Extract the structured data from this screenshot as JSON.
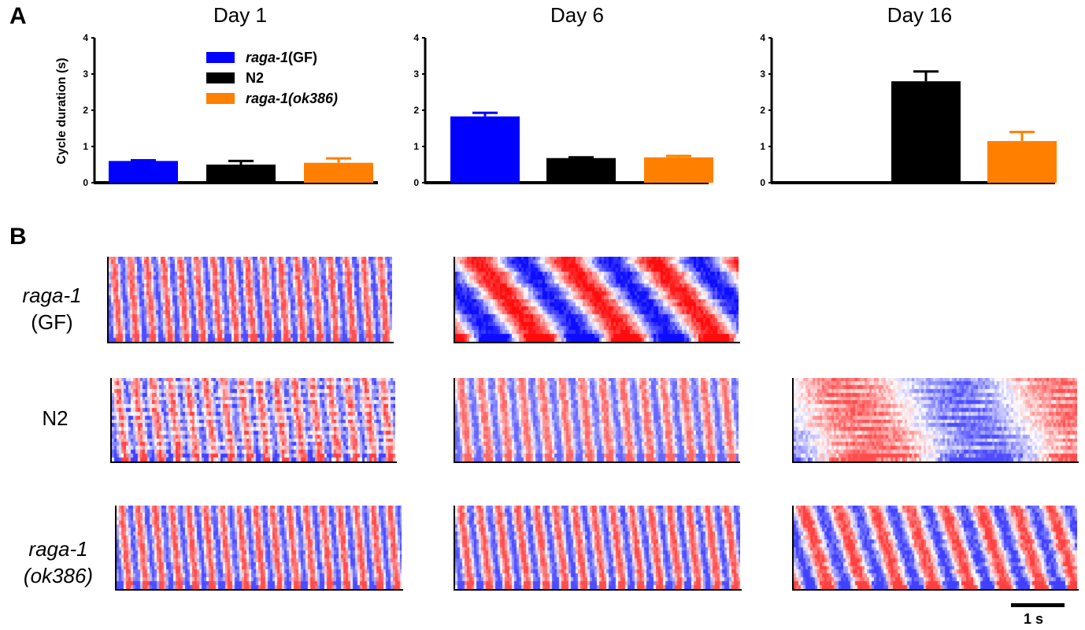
{
  "panel_a_label": "A",
  "panel_b_label": "B",
  "legend": {
    "items": [
      {
        "italic": "raga-1",
        "plain": "(GF)",
        "color": "#0000ff"
      },
      {
        "italic": "",
        "plain": "N2",
        "color": "#000000"
      },
      {
        "italic": "raga-1(ok386)",
        "plain": "",
        "color": "#ff8000"
      }
    ]
  },
  "chart_data": [
    {
      "type": "bar",
      "title": "Day 1",
      "ylabel": "Cycle duration (s)",
      "ylim": [
        0,
        4
      ],
      "yticks": [
        "0",
        "1",
        "2",
        "3",
        "4"
      ],
      "categories": [
        "raga-1(GF)",
        "N2",
        "raga-1(ok386)"
      ],
      "values": [
        0.6,
        0.5,
        0.55
      ],
      "errors": [
        0.02,
        0.1,
        0.12
      ],
      "colors": [
        "#0000ff",
        "#000000",
        "#ff8000"
      ]
    },
    {
      "type": "bar",
      "title": "Day 6",
      "ylabel": "",
      "ylim": [
        0,
        4
      ],
      "yticks": [
        "0",
        "1",
        "2",
        "3",
        "4"
      ],
      "categories": [
        "raga-1(GF)",
        "N2",
        "raga-1(ok386)"
      ],
      "values": [
        1.83,
        0.68,
        0.7
      ],
      "errors": [
        0.1,
        0.02,
        0.04
      ],
      "colors": [
        "#0000ff",
        "#000000",
        "#ff8000"
      ]
    },
    {
      "type": "bar",
      "title": "Day 16",
      "ylabel": "",
      "ylim": [
        0,
        4
      ],
      "yticks": [
        "0",
        "1",
        "2",
        "3",
        "4"
      ],
      "categories": [
        "raga-1(GF)",
        "N2",
        "raga-1(ok386)"
      ],
      "values": [
        null,
        2.8,
        1.15
      ],
      "errors": [
        null,
        0.27,
        0.25
      ],
      "colors": [
        "#0000ff",
        "#000000",
        "#ff8000"
      ]
    }
  ],
  "rows": [
    {
      "italic": "raga-1",
      "second": "(GF)",
      "second_italic": false
    },
    {
      "italic": "",
      "second": "N2",
      "second_italic": false
    },
    {
      "italic": "raga-1",
      "second": "(ok386)",
      "second_italic": true
    }
  ],
  "kymographs": [
    {
      "row": 0,
      "col": 0,
      "waves": 17
    },
    {
      "row": 0,
      "col": 1,
      "waves": 3.2
    },
    {
      "row": 1,
      "col": 0,
      "waves": 16
    },
    {
      "row": 1,
      "col": 1,
      "waves": 14
    },
    {
      "row": 1,
      "col": 2,
      "waves": 1.3
    },
    {
      "row": 2,
      "col": 0,
      "waves": 17
    },
    {
      "row": 2,
      "col": 1,
      "waves": 15
    },
    {
      "row": 2,
      "col": 2,
      "waves": 8
    }
  ],
  "scale_bar_label": "1 s"
}
